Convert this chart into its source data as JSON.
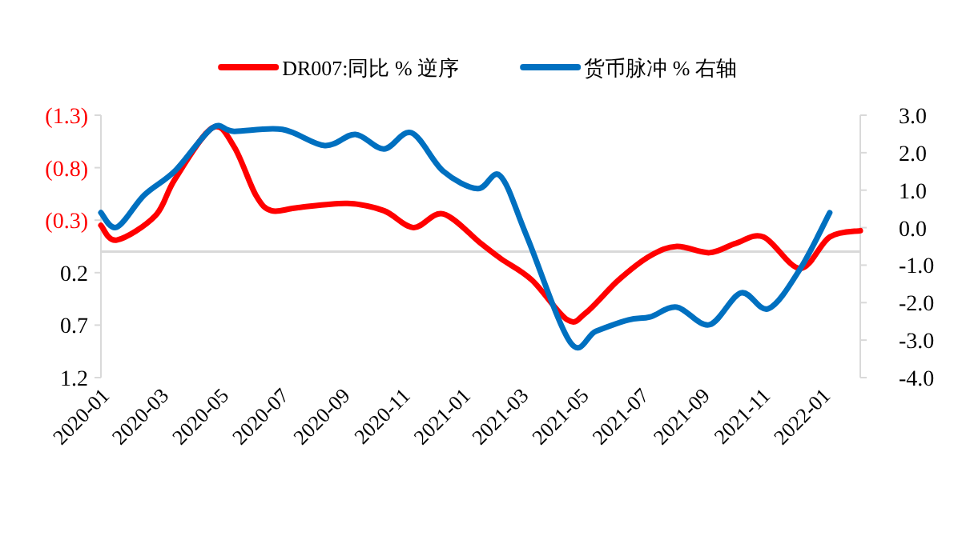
{
  "chart_data": {
    "type": "line",
    "legend": "top",
    "grid": false,
    "line_style": "solid",
    "marker": "none",
    "xlim": [
      "2020-01-01",
      "2022-02-09"
    ],
    "xticks": [
      {
        "value": "2020-01",
        "label": "2020-01"
      },
      {
        "value": "2020-03",
        "label": "2020-03"
      },
      {
        "value": "2020-05",
        "label": "2020-05"
      },
      {
        "value": "2020-07",
        "label": "2020-07"
      },
      {
        "value": "2020-09",
        "label": "2020-09"
      },
      {
        "value": "2020-11",
        "label": "2020-11"
      },
      {
        "value": "2021-01",
        "label": "2021-01"
      },
      {
        "value": "2021-03",
        "label": "2021-03"
      },
      {
        "value": "2021-05",
        "label": "2021-05"
      },
      {
        "value": "2021-07",
        "label": "2021-07"
      },
      {
        "value": "2021-09",
        "label": "2021-09"
      },
      {
        "value": "2021-11",
        "label": "2021-11"
      },
      {
        "value": "2022-01",
        "label": "2022-01"
      }
    ],
    "ylim": [
      1.2,
      -1.3
    ],
    "yticks": [
      {
        "value": -1.3,
        "label": "(1.3)"
      },
      {
        "value": -0.8,
        "label": "(0.8)"
      },
      {
        "value": -0.3,
        "label": "(0.3)"
      },
      0.2,
      0.7,
      1.2
    ],
    "y2lim": [
      -4.0,
      3.0
    ],
    "y2ticks": [
      {
        "value": 3,
        "label": "3.0"
      },
      {
        "value": 2,
        "label": "2.0"
      },
      {
        "value": 1,
        "label": "1.0"
      },
      {
        "value": 0,
        "label": "0.0"
      },
      {
        "value": -1,
        "label": "-1.0"
      },
      {
        "value": -2,
        "label": "-2.0"
      },
      {
        "value": -3,
        "label": "-3.0"
      },
      {
        "value": -4,
        "label": "-4.0"
      }
    ],
    "ref_lines": [
      {
        "axis": "y",
        "value": 0,
        "color": "#d9d9d9"
      }
    ],
    "series": [
      {
        "name": "DR007:同比 % 逆序",
        "color": "#ff0000",
        "x": [
          "2020-01-01",
          "2020-01-17",
          "2020-02-25",
          "2020-03-16",
          "2020-04-23",
          "2020-05-15",
          "2020-06-06",
          "2020-06-22",
          "2020-07-19",
          "2020-09-07",
          "2020-10-14",
          "2020-11-13",
          "2020-12-13",
          "2021-01-20",
          "2021-02-10",
          "2021-03-13",
          "2021-04-18",
          "2021-05-07",
          "2021-06-09",
          "2021-07-11",
          "2021-08-07",
          "2021-09-09",
          "2021-10-06",
          "2021-11-03",
          "2021-12-10",
          "2022-01-09",
          "2022-02-09"
        ],
        "values": [
          -0.25,
          -0.11,
          -0.34,
          -0.69,
          -1.18,
          -1.0,
          -0.54,
          -0.39,
          -0.42,
          -0.46,
          -0.39,
          -0.23,
          -0.36,
          -0.08,
          0.07,
          0.27,
          0.65,
          0.58,
          0.27,
          0.04,
          -0.05,
          0.01,
          -0.08,
          -0.14,
          0.16,
          -0.14,
          -0.2
        ]
      },
      {
        "name": "货币脉冲 % 右轴",
        "color": "#0070c0",
        "axis": "y2",
        "x": [
          "2020-01-01",
          "2020-01-17",
          "2020-02-14",
          "2020-03-16",
          "2020-04-23",
          "2020-05-15",
          "2020-07-03",
          "2020-08-15",
          "2020-09-15",
          "2020-10-14",
          "2020-11-11",
          "2020-12-13",
          "2021-01-17",
          "2021-02-09",
          "2021-03-08",
          "2021-04-21",
          "2021-05-17",
          "2021-06-19",
          "2021-07-11",
          "2021-08-07",
          "2021-09-09",
          "2021-10-11",
          "2021-11-08",
          "2021-12-10",
          "2022-01-09"
        ],
        "values": [
          0.4,
          0.01,
          0.87,
          1.51,
          2.66,
          2.57,
          2.62,
          2.19,
          2.49,
          2.1,
          2.53,
          1.51,
          1.04,
          1.38,
          -0.24,
          -3.06,
          -2.76,
          -2.46,
          -2.38,
          -2.12,
          -2.59,
          -1.74,
          -2.16,
          -1.1,
          0.4
        ]
      }
    ]
  }
}
